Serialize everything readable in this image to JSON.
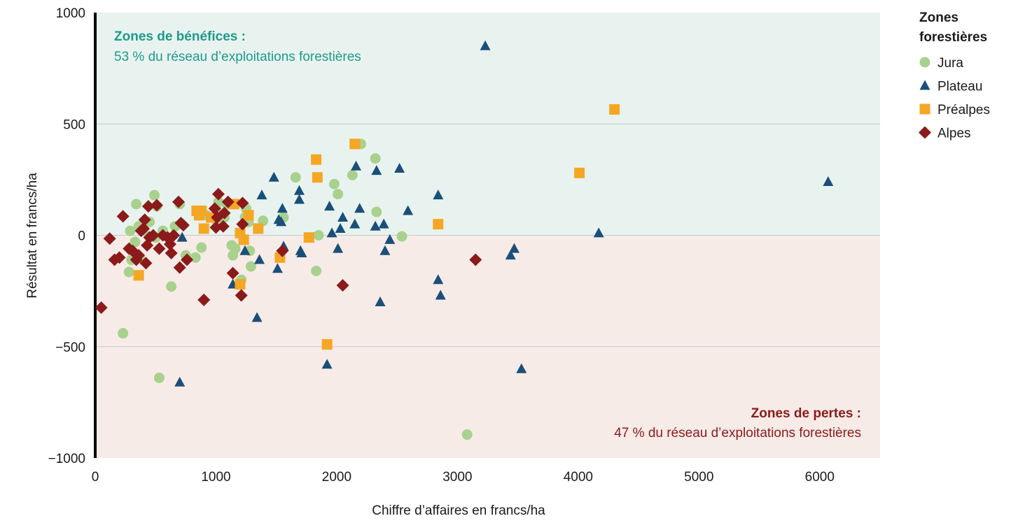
{
  "chart_data": {
    "type": "scatter",
    "title": "",
    "xlabel": "Chiffre d’affaires en francs/ha",
    "ylabel": "Résultat en francs/ha",
    "xlim": [
      0,
      6500
    ],
    "ylim": [
      -1000,
      1000
    ],
    "xticks": [
      0,
      1000,
      2000,
      3000,
      4000,
      5000,
      6000
    ],
    "xtick_labels": [
      "0",
      "1000",
      "2000",
      "3000",
      "4000",
      "5000",
      "6000"
    ],
    "yticks": [
      1000,
      500,
      0,
      -500,
      -1000
    ],
    "ytick_labels": [
      "1000",
      "500",
      "0",
      "−500",
      "−1000"
    ],
    "grid": "horizontal",
    "zones": {
      "profit": {
        "title": "Zones de bénéfices :",
        "subtitle": "53 % du réseau d’exploitations forestières",
        "bg_color": "#e8f3f0",
        "text_color": "#1f9a8a"
      },
      "loss": {
        "title": "Zones de pertes :",
        "subtitle": "47 % du réseau d’exploitations forestières",
        "bg_color": "#f7ebe8",
        "text_color": "#8b1a1a"
      }
    },
    "legend": {
      "title_line1": "Zones",
      "title_line2": "forestières",
      "placement": "right"
    },
    "series": [
      {
        "name": "Jura",
        "marker": "circle",
        "color": "#a9d18e",
        "points": [
          [
            230,
            -440
          ],
          [
            280,
            -165
          ],
          [
            290,
            20
          ],
          [
            300,
            -110
          ],
          [
            330,
            -30
          ],
          [
            340,
            140
          ],
          [
            360,
            40
          ],
          [
            370,
            -100
          ],
          [
            400,
            20
          ],
          [
            410,
            60
          ],
          [
            450,
            60
          ],
          [
            490,
            180
          ],
          [
            500,
            -10
          ],
          [
            510,
            130
          ],
          [
            530,
            -640
          ],
          [
            560,
            20
          ],
          [
            630,
            -230
          ],
          [
            660,
            40
          ],
          [
            700,
            140
          ],
          [
            750,
            -90
          ],
          [
            830,
            -100
          ],
          [
            880,
            -55
          ],
          [
            920,
            90
          ],
          [
            1000,
            120
          ],
          [
            1010,
            60
          ],
          [
            1020,
            150
          ],
          [
            1070,
            80
          ],
          [
            1090,
            140
          ],
          [
            1130,
            -45
          ],
          [
            1140,
            -90
          ],
          [
            1160,
            -60
          ],
          [
            1210,
            -200
          ],
          [
            1240,
            80
          ],
          [
            1250,
            120
          ],
          [
            1270,
            60
          ],
          [
            1280,
            -70
          ],
          [
            1290,
            -140
          ],
          [
            1390,
            65
          ],
          [
            1560,
            80
          ],
          [
            1660,
            260
          ],
          [
            1830,
            -160
          ],
          [
            1850,
            0
          ],
          [
            1980,
            230
          ],
          [
            2010,
            185
          ],
          [
            2130,
            270
          ],
          [
            2200,
            410
          ],
          [
            2320,
            345
          ],
          [
            2330,
            105
          ],
          [
            2540,
            -5
          ],
          [
            3080,
            -895
          ]
        ]
      },
      {
        "name": "Plateau",
        "marker": "triangle",
        "color": "#1a4f7a",
        "points": [
          [
            700,
            -660
          ],
          [
            720,
            -10
          ],
          [
            1140,
            -220
          ],
          [
            1240,
            -70
          ],
          [
            1340,
            -370
          ],
          [
            1360,
            -110
          ],
          [
            1380,
            180
          ],
          [
            1480,
            260
          ],
          [
            1510,
            -150
          ],
          [
            1520,
            70
          ],
          [
            1540,
            60
          ],
          [
            1550,
            120
          ],
          [
            1560,
            -50
          ],
          [
            1690,
            200
          ],
          [
            1690,
            160
          ],
          [
            1700,
            -70
          ],
          [
            1710,
            -80
          ],
          [
            1920,
            -580
          ],
          [
            1940,
            130
          ],
          [
            1960,
            10
          ],
          [
            2010,
            -60
          ],
          [
            2030,
            30
          ],
          [
            2050,
            80
          ],
          [
            2150,
            50
          ],
          [
            2160,
            310
          ],
          [
            2190,
            120
          ],
          [
            2320,
            40
          ],
          [
            2330,
            290
          ],
          [
            2360,
            -300
          ],
          [
            2390,
            50
          ],
          [
            2400,
            -70
          ],
          [
            2440,
            -20
          ],
          [
            2520,
            300
          ],
          [
            2590,
            110
          ],
          [
            2840,
            180
          ],
          [
            2840,
            -200
          ],
          [
            2860,
            -270
          ],
          [
            3230,
            850
          ],
          [
            3440,
            -90
          ],
          [
            3470,
            -60
          ],
          [
            3530,
            -600
          ],
          [
            4170,
            10
          ],
          [
            6070,
            240
          ]
        ]
      },
      {
        "name": "Préalpes",
        "marker": "square",
        "color": "#f5a623",
        "points": [
          [
            360,
            -180
          ],
          [
            840,
            110
          ],
          [
            860,
            90
          ],
          [
            880,
            110
          ],
          [
            900,
            30
          ],
          [
            960,
            80
          ],
          [
            1150,
            140
          ],
          [
            1200,
            10
          ],
          [
            1200,
            -220
          ],
          [
            1230,
            -20
          ],
          [
            1270,
            90
          ],
          [
            1350,
            30
          ],
          [
            1530,
            -100
          ],
          [
            1770,
            -10
          ],
          [
            1830,
            340
          ],
          [
            1840,
            260
          ],
          [
            1920,
            -490
          ],
          [
            2150,
            410
          ],
          [
            2840,
            50
          ],
          [
            4010,
            280
          ],
          [
            4300,
            565
          ]
        ]
      },
      {
        "name": "Alpes",
        "marker": "diamond",
        "color": "#8b1a1a",
        "points": [
          [
            50,
            -325
          ],
          [
            120,
            -15
          ],
          [
            160,
            -110
          ],
          [
            200,
            -100
          ],
          [
            230,
            85
          ],
          [
            280,
            -60
          ],
          [
            310,
            -70
          ],
          [
            340,
            -110
          ],
          [
            360,
            -90
          ],
          [
            380,
            20
          ],
          [
            400,
            30
          ],
          [
            410,
            70
          ],
          [
            420,
            -125
          ],
          [
            430,
            -45
          ],
          [
            440,
            130
          ],
          [
            450,
            -10
          ],
          [
            480,
            0
          ],
          [
            510,
            135
          ],
          [
            530,
            -60
          ],
          [
            560,
            0
          ],
          [
            600,
            -10
          ],
          [
            620,
            -40
          ],
          [
            630,
            -80
          ],
          [
            650,
            0
          ],
          [
            690,
            150
          ],
          [
            700,
            -145
          ],
          [
            710,
            55
          ],
          [
            730,
            45
          ],
          [
            760,
            -110
          ],
          [
            900,
            -290
          ],
          [
            990,
            120
          ],
          [
            1000,
            35
          ],
          [
            1010,
            80
          ],
          [
            1020,
            185
          ],
          [
            1060,
            40
          ],
          [
            1070,
            100
          ],
          [
            1100,
            150
          ],
          [
            1140,
            -170
          ],
          [
            1210,
            -270
          ],
          [
            1220,
            145
          ],
          [
            1220,
            50
          ],
          [
            1550,
            -70
          ],
          [
            2050,
            -225
          ],
          [
            3150,
            -110
          ]
        ]
      }
    ]
  }
}
